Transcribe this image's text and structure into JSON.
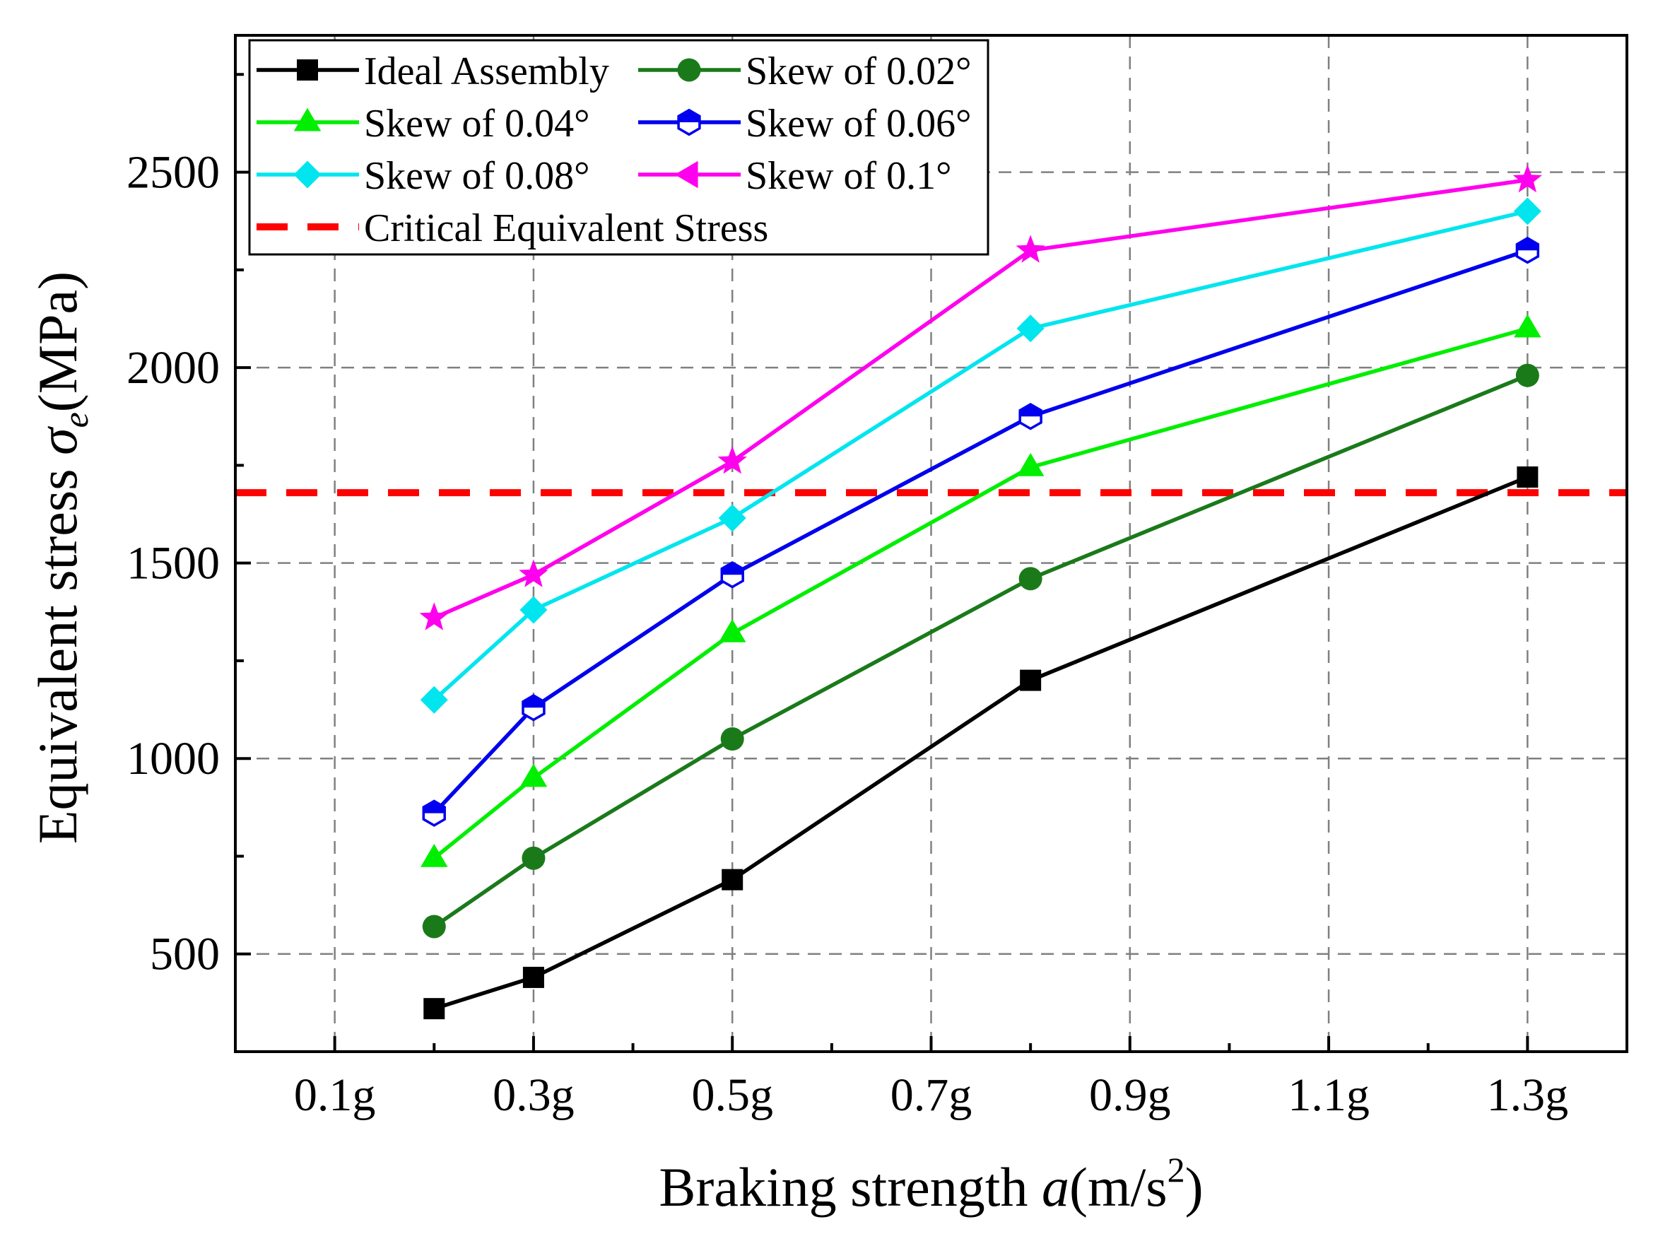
{
  "chart_data": {
    "type": "line",
    "xlabel": {
      "prefix": "Braking strength ",
      "var": "a",
      "unit": "(m/s",
      "sup": "2",
      "close": ")"
    },
    "ylabel": {
      "prefix": "Equivalent stress ",
      "var": "σ",
      "sub": "e",
      "unit": "(MPa)"
    },
    "x_ticks": [
      {
        "value": 0.1,
        "label": "0.1g"
      },
      {
        "value": 0.3,
        "label": "0.3g"
      },
      {
        "value": 0.5,
        "label": "0.5g"
      },
      {
        "value": 0.7,
        "label": "0.7g"
      },
      {
        "value": 0.9,
        "label": "0.9g"
      },
      {
        "value": 1.1,
        "label": "1.1g"
      },
      {
        "value": 1.3,
        "label": "1.3g"
      }
    ],
    "y_ticks": [
      {
        "value": 500,
        "label": "500"
      },
      {
        "value": 1000,
        "label": "1000"
      },
      {
        "value": 1500,
        "label": "1500"
      },
      {
        "value": 2000,
        "label": "2000"
      },
      {
        "value": 2500,
        "label": "2500"
      }
    ],
    "xlim": [
      0.0,
      1.4
    ],
    "ylim": [
      250,
      2850
    ],
    "grid": true,
    "legend_position": "top-left",
    "series": [
      {
        "name": "Ideal Assembly",
        "color": "#000000",
        "marker": "square",
        "x": [
          0.2,
          0.3,
          0.5,
          0.8,
          1.3
        ],
        "values": [
          360,
          440,
          690,
          1200,
          1720
        ]
      },
      {
        "name": "Skew of 0.02°",
        "color": "#1a7a1a",
        "marker": "circle",
        "x": [
          0.2,
          0.3,
          0.5,
          0.8,
          1.3
        ],
        "values": [
          570,
          745,
          1050,
          1460,
          1980
        ]
      },
      {
        "name": "Skew of 0.04°",
        "color": "#00ee00",
        "marker": "triangle-up",
        "x": [
          0.2,
          0.3,
          0.5,
          0.8,
          1.3
        ],
        "values": [
          745,
          950,
          1320,
          1745,
          2100
        ]
      },
      {
        "name": "Skew of 0.06°",
        "color": "#0000ee",
        "marker": "hexagon-half",
        "x": [
          0.2,
          0.3,
          0.5,
          0.8,
          1.3
        ],
        "values": [
          860,
          1130,
          1470,
          1875,
          2300
        ]
      },
      {
        "name": "Skew of 0.08°",
        "color": "#00e5ee",
        "marker": "diamond",
        "x": [
          0.2,
          0.3,
          0.5,
          0.8,
          1.3
        ],
        "values": [
          1150,
          1380,
          1615,
          2100,
          2400
        ]
      },
      {
        "name": "Skew of 0.1°",
        "color": "#ff00ee",
        "marker": "star",
        "legend_marker": "triangle-left",
        "x": [
          0.2,
          0.3,
          0.5,
          0.8,
          1.3
        ],
        "values": [
          1360,
          1470,
          1760,
          2300,
          2480
        ]
      }
    ],
    "reference_lines": [
      {
        "name": "Critical Equivalent Stress",
        "color": "#ff0000",
        "style": "dashed",
        "y": 1680
      }
    ]
  }
}
